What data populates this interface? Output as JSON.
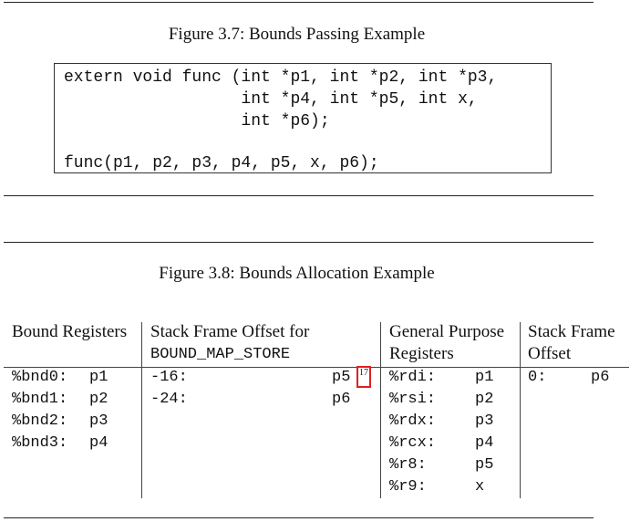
{
  "figure_37": {
    "caption": "Figure 3.7: Bounds Passing Example",
    "code_lines": [
      "extern void func (int *p1, int *p2, int *p3,",
      "                  int *p4, int *p5, int x,",
      "                  int *p6);",
      "",
      "func(p1, p2, p3, p4, p5, x, p6);"
    ]
  },
  "figure_38": {
    "caption": "Figure 3.8: Bounds Allocation Example",
    "headers": {
      "bound_registers": "Bound Registers",
      "stack_offset_line1": "Stack Frame Offset for",
      "stack_offset_line2": "BOUND_MAP_STORE",
      "gp_line1": "General Purpose",
      "gp_line2": "Registers",
      "sf_line1": "Stack Frame",
      "sf_line2": "Offset"
    },
    "bound_registers": [
      {
        "reg": "%bnd0:",
        "ptr": "p1"
      },
      {
        "reg": "%bnd1:",
        "ptr": "p2"
      },
      {
        "reg": "%bnd2:",
        "ptr": "p3"
      },
      {
        "reg": "%bnd3:",
        "ptr": "p4"
      }
    ],
    "stack_offsets": [
      {
        "offset": "-16:",
        "ptr": "p5"
      },
      {
        "offset": "-24:",
        "ptr": "p6"
      }
    ],
    "footnote_mark": "17",
    "gp_registers": [
      {
        "reg": "%rdi:",
        "val": "p1"
      },
      {
        "reg": "%rsi:",
        "val": "p2"
      },
      {
        "reg": "%rdx:",
        "val": "p3"
      },
      {
        "reg": "%rcx:",
        "val": "p4"
      },
      {
        "reg": "%r8:",
        "val": "p5"
      },
      {
        "reg": "%r9:",
        "val": "x"
      }
    ],
    "stack_frame": [
      {
        "offset": "0:",
        "val": "p6"
      }
    ]
  }
}
